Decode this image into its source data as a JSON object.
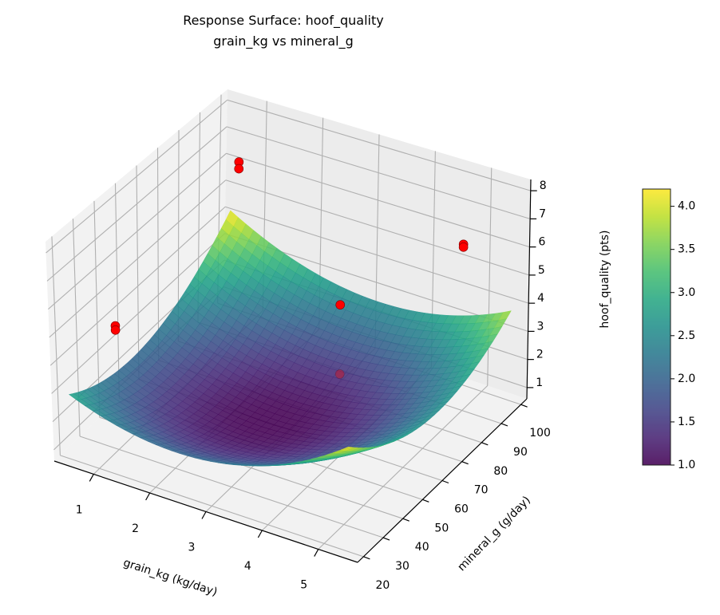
{
  "chart_data": {
    "type": "surface3d",
    "title": "Response Surface: hoof_quality",
    "subtitle": "grain_kg vs mineral_g",
    "xlabel": "grain_kg (kg/day)",
    "ylabel": "mineral_g (g/day)",
    "zlabel": "hoof_quality (pts)",
    "xlim": [
      0.3,
      5.7
    ],
    "ylim": [
      17,
      103
    ],
    "zlim": [
      0.6,
      8.4
    ],
    "xticks": [
      "1",
      "2",
      "3",
      "4",
      "5"
    ],
    "xtick_values": [
      1,
      2,
      3,
      4,
      5
    ],
    "yticks": [
      "20",
      "30",
      "40",
      "50",
      "60",
      "70",
      "80",
      "90",
      "100"
    ],
    "ytick_values": [
      20,
      30,
      40,
      50,
      60,
      70,
      80,
      90,
      100
    ],
    "zticks": [
      "1",
      "2",
      "3",
      "4",
      "5",
      "6",
      "7",
      "8"
    ],
    "ztick_values": [
      1,
      2,
      3,
      4,
      5,
      6,
      7,
      8
    ],
    "surface": {
      "x_range": [
        0.5,
        5.5
      ],
      "y_range": [
        20,
        100
      ],
      "model": "z = c0 + a*u^2 + b*v^2 + c*u*v + d*u + e*v (u,v scaled to -1..1)",
      "c0": 1.0,
      "a": 1.4,
      "b": 1.375,
      "c": -0.425,
      "d": 0.225,
      "e": 0.225,
      "colormap": "viridis",
      "alpha": 0.85
    },
    "points": [
      {
        "x": 1,
        "y": 30,
        "z": 5.0
      },
      {
        "x": 1,
        "y": 30,
        "z": 4.85
      },
      {
        "x": 1,
        "y": 90,
        "z": 7.0
      },
      {
        "x": 1,
        "y": 90,
        "z": 6.75
      },
      {
        "x": 5,
        "y": 90,
        "z": 6.5
      },
      {
        "x": 5,
        "y": 90,
        "z": 6.4
      },
      {
        "x": 3,
        "y": 85,
        "z": 3.4
      },
      {
        "x": 3,
        "y": 85,
        "z": 0.9
      }
    ],
    "point_color": "#ff0000",
    "colorbar": {
      "range": [
        1.0,
        4.2
      ],
      "ticks": [
        "1.0",
        "1.5",
        "2.0",
        "2.5",
        "3.0",
        "3.5",
        "4.0"
      ],
      "tick_values": [
        1.0,
        1.5,
        2.0,
        2.5,
        3.0,
        3.5,
        4.0
      ]
    }
  }
}
